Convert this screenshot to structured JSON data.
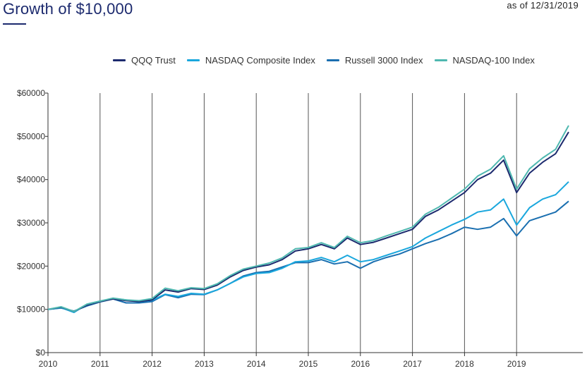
{
  "header": {
    "title": "Growth of $10,000",
    "as_of": "as of 12/31/2019"
  },
  "chart_data": {
    "type": "line",
    "title": "Growth of $10,000",
    "xlabel": "",
    "ylabel": "",
    "xlim": [
      2010,
      2020
    ],
    "ylim": [
      0,
      60000
    ],
    "x_ticks": [
      2010,
      2011,
      2012,
      2013,
      2014,
      2015,
      2016,
      2017,
      2018,
      2019
    ],
    "x_tick_labels": [
      "2010",
      "2011",
      "2012",
      "2013",
      "2014",
      "2015",
      "2016",
      "2017",
      "2018",
      "2019"
    ],
    "y_ticks": [
      0,
      10000,
      20000,
      30000,
      40000,
      50000,
      60000
    ],
    "y_tick_labels": [
      "$0",
      "$10000",
      "$20000",
      "$30000",
      "$40000",
      "$50000",
      "$60000"
    ],
    "grid": "vertical lines at each year",
    "legend_position": "top",
    "x": [
      2010.0,
      2010.25,
      2010.5,
      2010.75,
      2011.0,
      2011.25,
      2011.5,
      2011.75,
      2012.0,
      2012.25,
      2012.5,
      2012.75,
      2013.0,
      2013.25,
      2013.5,
      2013.75,
      2014.0,
      2014.25,
      2014.5,
      2014.75,
      2015.0,
      2015.25,
      2015.5,
      2015.75,
      2016.0,
      2016.25,
      2016.5,
      2016.75,
      2017.0,
      2017.25,
      2017.5,
      2017.75,
      2018.0,
      2018.25,
      2018.5,
      2018.75,
      2019.0,
      2019.25,
      2019.5,
      2019.75,
      2020.0
    ],
    "series": [
      {
        "name": "QQQ Trust",
        "color": "#1c2a6e",
        "values": [
          10000,
          10500,
          9500,
          11000,
          11800,
          12400,
          12000,
          11800,
          12200,
          14500,
          14000,
          14800,
          14600,
          15600,
          17500,
          19000,
          19800,
          20300,
          21500,
          23500,
          24000,
          25000,
          24000,
          26500,
          25000,
          25500,
          26500,
          27500,
          28500,
          31500,
          33000,
          35000,
          37000,
          40000,
          41500,
          44500,
          37000,
          41500,
          44000,
          46000,
          51000
        ]
      },
      {
        "name": "NASDAQ Composite Index",
        "color": "#1aa7dd",
        "values": [
          10000,
          10400,
          9300,
          11200,
          11900,
          12500,
          12200,
          11800,
          12100,
          13500,
          13000,
          13700,
          13500,
          14500,
          16000,
          17500,
          18300,
          18500,
          19500,
          21000,
          21200,
          22000,
          21000,
          22500,
          21000,
          21500,
          22500,
          23500,
          24500,
          26500,
          28000,
          29500,
          30800,
          32500,
          33000,
          35500,
          29500,
          33500,
          35500,
          36500,
          39500
        ]
      },
      {
        "name": "Russell 3000 Index",
        "color": "#1a6fb0",
        "values": [
          10000,
          10300,
          9600,
          10800,
          11700,
          12400,
          11500,
          11500,
          11800,
          13400,
          12700,
          13500,
          13400,
          14500,
          16000,
          17700,
          18500,
          18800,
          19800,
          20800,
          20800,
          21500,
          20500,
          21000,
          19500,
          21000,
          22000,
          22800,
          24000,
          25200,
          26200,
          27500,
          29000,
          28500,
          29000,
          31000,
          27000,
          30500,
          31500,
          32500,
          35000
        ]
      },
      {
        "name": "NASDAQ-100 Index",
        "color": "#4fb8b0",
        "values": [
          10000,
          10600,
          9500,
          11200,
          11900,
          12600,
          12200,
          12000,
          12500,
          14900,
          14300,
          15000,
          14800,
          15900,
          17800,
          19300,
          20000,
          20700,
          21900,
          24000,
          24300,
          25400,
          24300,
          26900,
          25400,
          25900,
          27000,
          28000,
          29000,
          32000,
          33600,
          35700,
          37800,
          40800,
          42400,
          45500,
          37800,
          42500,
          45000,
          47000,
          52500
        ]
      }
    ]
  }
}
